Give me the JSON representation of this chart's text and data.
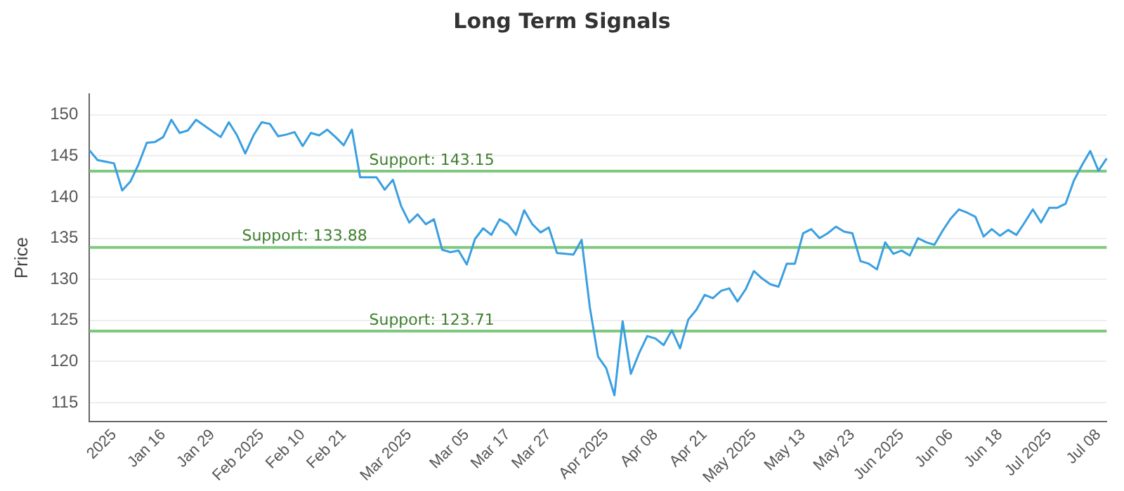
{
  "chart_data": {
    "type": "line",
    "title": "Long Term Signals",
    "ylabel": "Price",
    "categories": [
      null,
      null,
      null,
      "2025",
      null,
      null,
      null,
      null,
      null,
      "Jan 16",
      null,
      null,
      null,
      null,
      null,
      "Jan 29",
      null,
      null,
      null,
      null,
      null,
      "Feb 2025",
      null,
      null,
      null,
      null,
      "Feb 10",
      null,
      null,
      null,
      null,
      "Feb 21",
      null,
      null,
      null,
      null,
      null,
      null,
      null,
      "Mar 2025",
      null,
      null,
      null,
      null,
      null,
      null,
      "Mar 05",
      null,
      null,
      null,
      null,
      "Mar 17",
      null,
      null,
      null,
      null,
      "Mar 27",
      null,
      null,
      null,
      null,
      null,
      null,
      "Apr 2025",
      null,
      null,
      null,
      null,
      null,
      "Apr 08",
      null,
      null,
      null,
      null,
      null,
      "Apr 21",
      null,
      null,
      null,
      null,
      null,
      "May 2025",
      null,
      null,
      null,
      null,
      null,
      "May 13",
      null,
      null,
      null,
      null,
      null,
      "May 23",
      null,
      null,
      null,
      null,
      null,
      "Jun 2025",
      null,
      null,
      null,
      null,
      null,
      "Jun 06",
      null,
      null,
      null,
      null,
      null,
      "Jun 18",
      null,
      null,
      null,
      null,
      null,
      "Jul 2025",
      null,
      null,
      null,
      null,
      null,
      "Jul 08",
      null
    ],
    "series": [
      {
        "color": "#3a9fe0",
        "values": [
          145.7,
          144.5,
          144.3,
          144.1,
          140.8,
          141.9,
          144.0,
          146.6,
          146.7,
          147.3,
          149.4,
          147.8,
          148.1,
          149.4,
          148.7,
          148.0,
          147.3,
          149.1,
          147.5,
          145.3,
          147.5,
          149.1,
          148.9,
          147.4,
          147.6,
          147.9,
          146.2,
          147.8,
          147.5,
          148.2,
          147.3,
          146.3,
          148.2,
          142.4,
          142.4,
          142.4,
          140.9,
          142.1,
          138.9,
          136.9,
          137.9,
          136.7,
          137.3,
          133.6,
          133.3,
          133.5,
          131.8,
          134.9,
          136.2,
          135.4,
          137.3,
          136.7,
          135.4,
          138.4,
          136.7,
          135.7,
          136.3,
          133.2,
          133.1,
          133.0,
          134.8,
          126.6,
          120.6,
          119.2,
          115.9,
          124.9,
          118.5,
          121.0,
          123.1,
          122.8,
          122.0,
          123.8,
          121.6,
          125.1,
          126.3,
          128.1,
          127.7,
          128.6,
          128.9,
          127.3,
          128.8,
          131.0,
          130.1,
          129.4,
          129.1,
          131.9,
          131.9,
          135.6,
          136.1,
          135.0,
          135.6,
          136.4,
          135.8,
          135.6,
          132.2,
          131.9,
          131.2,
          134.5,
          133.1,
          133.5,
          132.9,
          135.0,
          134.5,
          134.2,
          135.9,
          137.4,
          138.5,
          138.1,
          137.6,
          135.2,
          136.1,
          135.3,
          136.0,
          135.4,
          136.9,
          138.5,
          136.9,
          138.7,
          138.7,
          139.2,
          142.0,
          143.9,
          145.6,
          143.2,
          144.7
        ]
      }
    ],
    "ylim": [
      112.7,
      152.5
    ],
    "yticks": [
      115,
      120,
      125,
      130,
      135,
      140,
      145,
      150
    ],
    "ref_lines": [
      {
        "axis": "y",
        "value": 143.15,
        "label": "Support: 143.15",
        "color": "#7fc87f"
      },
      {
        "axis": "y",
        "value": 133.88,
        "label": "Support: 133.88",
        "color": "#7fc87f"
      },
      {
        "axis": "y",
        "value": 123.71,
        "label": "Support: 123.71",
        "color": "#7fc87f"
      }
    ],
    "grid": "y",
    "legend": false,
    "marker": "none",
    "line_style": "solid"
  }
}
